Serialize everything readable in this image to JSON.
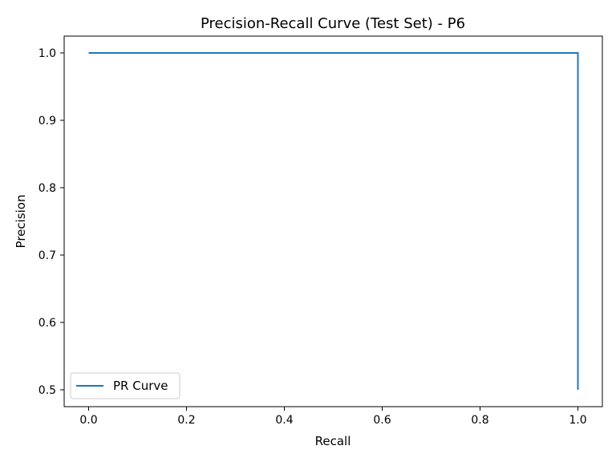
{
  "chart_data": {
    "type": "line",
    "title": "Precision-Recall Curve (Test Set) - P6",
    "xlabel": "Recall",
    "ylabel": "Precision",
    "xlim": [
      -0.05,
      1.05
    ],
    "ylim": [
      0.475,
      1.025
    ],
    "xticks": [
      0.0,
      0.2,
      0.4,
      0.6,
      0.8,
      1.0
    ],
    "yticks": [
      0.5,
      0.6,
      0.7,
      0.8,
      0.9,
      1.0
    ],
    "xtick_labels": [
      "0.0",
      "0.2",
      "0.4",
      "0.6",
      "0.8",
      "1.0"
    ],
    "ytick_labels": [
      "0.5",
      "0.6",
      "0.7",
      "0.8",
      "0.9",
      "1.0"
    ],
    "grid": false,
    "legend_position": "lower-left",
    "series": [
      {
        "name": "PR Curve",
        "color": "#1f77b4",
        "x": [
          0.0,
          1.0,
          1.0
        ],
        "y": [
          1.0,
          1.0,
          0.5
        ]
      }
    ]
  }
}
